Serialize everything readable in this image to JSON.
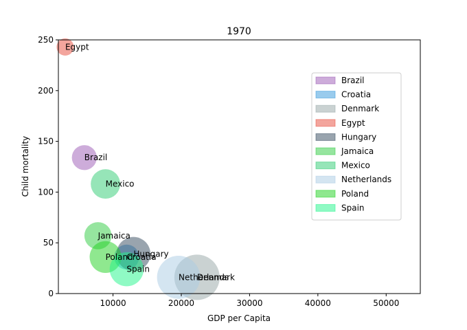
{
  "chart_data": {
    "type": "scatter",
    "title": "1970",
    "xlabel": "GDP per Capita",
    "ylabel": "Child mortality",
    "xlim": [
      2000,
      55000
    ],
    "ylim": [
      0,
      250
    ],
    "x_ticks": [
      10000,
      20000,
      30000,
      40000,
      50000
    ],
    "y_ticks": [
      0,
      50,
      100,
      150,
      200,
      250
    ],
    "grid": false,
    "legend_position": "right",
    "series": [
      {
        "name": "Brazil",
        "x": 5800,
        "y": 134,
        "size": 0.55,
        "color": "#9b59b6"
      },
      {
        "name": "Croatia",
        "x": 12000,
        "y": 36,
        "size": 0.55,
        "color": "#3498db"
      },
      {
        "name": "Denmark",
        "x": 22300,
        "y": 16,
        "size": 1.0,
        "color": "#95a5a6"
      },
      {
        "name": "Egypt",
        "x": 3000,
        "y": 243,
        "size": 0.38,
        "color": "#e74c3c"
      },
      {
        "name": "Hungary",
        "x": 13000,
        "y": 39,
        "size": 0.75,
        "color": "#34495e"
      },
      {
        "name": "Jamaica",
        "x": 7800,
        "y": 57,
        "size": 0.6,
        "color": "#2ecc40"
      },
      {
        "name": "Mexico",
        "x": 8900,
        "y": 108,
        "size": 0.65,
        "color": "#2ecc71"
      },
      {
        "name": "Netherlands",
        "x": 19600,
        "y": 16,
        "size": 0.95,
        "color": "#a9cce3"
      },
      {
        "name": "Poland",
        "x": 8900,
        "y": 36,
        "size": 0.7,
        "color": "#1fd11f"
      },
      {
        "name": "Spain",
        "x": 12000,
        "y": 24,
        "size": 0.75,
        "color": "#20f58a"
      }
    ]
  }
}
